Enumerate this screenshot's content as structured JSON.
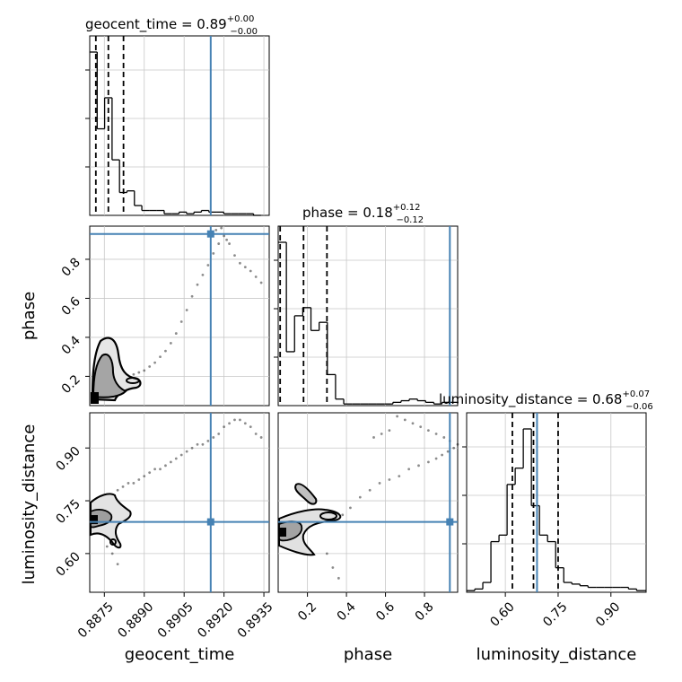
{
  "colors": {
    "truth": "#4682b4",
    "hist": "#000000",
    "grid": "#c8c8c8",
    "density": "#000000"
  },
  "chart_data": {
    "type": "corner",
    "parameters": [
      "geocent_time",
      "phase",
      "luminosity_distance"
    ],
    "axis_labels": {
      "x": [
        "geocent_time",
        "phase",
        "luminosity_distance"
      ],
      "y": [
        "phase",
        "luminosity_distance"
      ]
    },
    "titles": [
      {
        "param": "geocent_time",
        "prefix": "geocent_time = ",
        "median": "0.89",
        "plus": "+0.00",
        "minus": "−0.00"
      },
      {
        "param": "phase",
        "prefix": "phase = ",
        "median": "0.18",
        "plus": "+0.12",
        "minus": "−0.12"
      },
      {
        "param": "luminosity_distance",
        "prefix": "luminosity_distance = ",
        "median": "0.68",
        "plus": "+0.07",
        "minus": "−0.06"
      }
    ],
    "ranges": {
      "geocent_time": [
        0.88695,
        0.8937
      ],
      "phase": [
        0.05,
        0.97
      ],
      "luminosity_distance": [
        0.49,
        1.0
      ]
    },
    "ticks": {
      "geocent_time": {
        "values": [
          0.8875,
          0.889,
          0.8905,
          0.892,
          0.8935
        ],
        "labels": [
          "0.8875",
          "0.8890",
          "0.8905",
          "0.8920",
          "0.8935"
        ]
      },
      "phase": {
        "values": [
          0.2,
          0.4,
          0.6,
          0.8
        ],
        "labels": [
          "0.2",
          "0.4",
          "0.6",
          "0.8"
        ]
      },
      "luminosity_distance": {
        "values": [
          0.6,
          0.75,
          0.9
        ],
        "labels": [
          "0.60",
          "0.75",
          "0.90"
        ]
      }
    },
    "truths": {
      "geocent_time": 0.8915,
      "phase": 0.93,
      "luminosity_distance": 0.69
    },
    "quantiles": {
      "geocent_time": [
        0.88718,
        0.88765,
        0.88822
      ],
      "phase": [
        0.06,
        0.18,
        0.3
      ],
      "luminosity_distance": [
        0.62,
        0.68,
        0.75
      ]
    },
    "histograms": {
      "geocent_time": {
        "edges": [
          0.88695,
          0.88723,
          0.88751,
          0.88779,
          0.88807,
          0.88835,
          0.88863,
          0.88891,
          0.88919,
          0.88947,
          0.88975,
          0.89003,
          0.89031,
          0.89059,
          0.89087,
          0.89115,
          0.89143,
          0.89171,
          0.89199,
          0.89227,
          0.89255,
          0.89283,
          0.89311,
          0.89339
        ],
        "counts": [
          100,
          53,
          72,
          34,
          14,
          15,
          6,
          3,
          3,
          3,
          1,
          1,
          2,
          1,
          2,
          3,
          2,
          2,
          1,
          1,
          1,
          1,
          0
        ]
      },
      "phase": {
        "edges": [
          0.05,
          0.092,
          0.134,
          0.176,
          0.218,
          0.26,
          0.302,
          0.344,
          0.386,
          0.428,
          0.47,
          0.512,
          0.554,
          0.596,
          0.638,
          0.68,
          0.722,
          0.764,
          0.806,
          0.848,
          0.89,
          0.932,
          0.974
        ],
        "counts": [
          100,
          33,
          55,
          60,
          46,
          51,
          19,
          4,
          1,
          1,
          1,
          1,
          1,
          1,
          2,
          3,
          4,
          3,
          2,
          1,
          2,
          2
        ]
      },
      "luminosity_distance": {
        "edges": [
          0.49,
          0.513,
          0.536,
          0.559,
          0.582,
          0.605,
          0.628,
          0.651,
          0.674,
          0.697,
          0.72,
          0.743,
          0.766,
          0.789,
          0.812,
          0.835,
          0.858,
          0.881,
          0.904,
          0.927,
          0.95,
          0.973,
          1.0
        ],
        "counts": [
          1,
          2,
          6,
          31,
          35,
          66,
          76,
          100,
          53,
          35,
          31,
          15,
          6,
          5,
          4,
          3,
          3,
          3,
          3,
          3,
          2,
          1
        ]
      }
    },
    "scatter_points": {
      "geocent_time_vs_phase": {
        "x": [
          0.88705,
          0.8872,
          0.8874,
          0.8876,
          0.8878,
          0.888,
          0.8882,
          0.8884,
          0.8886,
          0.8888,
          0.889,
          0.8892,
          0.8894,
          0.8896,
          0.8898,
          0.89,
          0.8902,
          0.8904,
          0.8906,
          0.8908,
          0.891,
          0.8912,
          0.8914,
          0.8916,
          0.8918,
          0.892,
          0.8922,
          0.8924,
          0.8926,
          0.8928,
          0.893,
          0.8932,
          0.8934,
          0.8917,
          0.8919,
          0.8921
        ],
        "y": [
          0.1,
          0.12,
          0.14,
          0.16,
          0.18,
          0.19,
          0.19,
          0.2,
          0.21,
          0.22,
          0.23,
          0.25,
          0.27,
          0.3,
          0.33,
          0.37,
          0.42,
          0.48,
          0.54,
          0.61,
          0.67,
          0.72,
          0.77,
          0.83,
          0.88,
          0.92,
          0.88,
          0.82,
          0.78,
          0.76,
          0.74,
          0.71,
          0.68,
          0.95,
          0.96,
          0.9
        ]
      },
      "geocent_time_vs_luminosity_distance": {
        "x": [
          0.88705,
          0.8872,
          0.8874,
          0.8876,
          0.8878,
          0.888,
          0.8882,
          0.8884,
          0.8886,
          0.8888,
          0.889,
          0.8892,
          0.8894,
          0.8896,
          0.8898,
          0.89,
          0.8902,
          0.8904,
          0.8906,
          0.8908,
          0.891,
          0.8912,
          0.8914,
          0.8916,
          0.8918,
          0.892,
          0.8922,
          0.8924,
          0.8926,
          0.8928,
          0.893,
          0.8932,
          0.8934,
          0.8876,
          0.8878,
          0.888
        ],
        "y": [
          0.68,
          0.69,
          0.71,
          0.73,
          0.76,
          0.78,
          0.79,
          0.8,
          0.8,
          0.81,
          0.82,
          0.83,
          0.84,
          0.84,
          0.85,
          0.86,
          0.87,
          0.88,
          0.89,
          0.9,
          0.91,
          0.91,
          0.92,
          0.93,
          0.94,
          0.96,
          0.97,
          0.98,
          0.98,
          0.97,
          0.96,
          0.94,
          0.93,
          0.62,
          0.6,
          0.57
        ]
      },
      "phase_vs_luminosity_distance": {
        "x": [
          0.07,
          0.12,
          0.17,
          0.22,
          0.26,
          0.3,
          0.34,
          0.38,
          0.42,
          0.47,
          0.52,
          0.57,
          0.62,
          0.67,
          0.72,
          0.77,
          0.82,
          0.86,
          0.89,
          0.92,
          0.95,
          0.97,
          0.93,
          0.9,
          0.86,
          0.82,
          0.78,
          0.74,
          0.7,
          0.66,
          0.62,
          0.58,
          0.54,
          0.3,
          0.33,
          0.36
        ],
        "y": [
          0.68,
          0.69,
          0.7,
          0.71,
          0.71,
          0.7,
          0.7,
          0.71,
          0.73,
          0.76,
          0.78,
          0.8,
          0.81,
          0.82,
          0.84,
          0.85,
          0.86,
          0.87,
          0.88,
          0.89,
          0.9,
          0.91,
          0.92,
          0.93,
          0.94,
          0.95,
          0.96,
          0.97,
          0.98,
          0.99,
          0.95,
          0.94,
          0.93,
          0.6,
          0.56,
          0.53
        ]
      }
    }
  }
}
